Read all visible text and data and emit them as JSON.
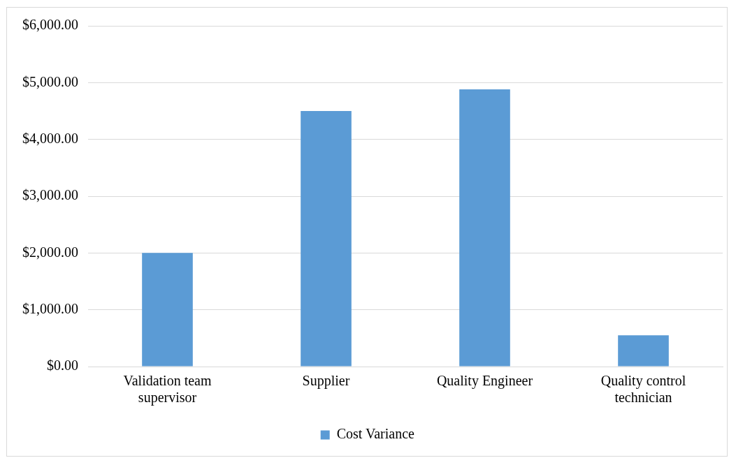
{
  "chart_data": {
    "type": "bar",
    "categories": [
      "Validation team supervisor",
      "Supplier",
      "Quality Engineer",
      "Quality control technician"
    ],
    "series": [
      {
        "name": "Cost Variance",
        "color": "#5b9bd5",
        "values": [
          2000,
          4500,
          4880,
          550
        ]
      }
    ],
    "ylim": [
      0,
      6000
    ],
    "yticks": [
      {
        "value": 0,
        "label": "$0.00"
      },
      {
        "value": 1000,
        "label": "$1,000.00"
      },
      {
        "value": 2000,
        "label": "$2,000.00"
      },
      {
        "value": 3000,
        "label": "$3,000.00"
      },
      {
        "value": 4000,
        "label": "$4,000.00"
      },
      {
        "value": 5000,
        "label": "$5,000.00"
      },
      {
        "value": 6000,
        "label": "$6,000.00"
      }
    ],
    "grid": "y",
    "legend": "bottom"
  }
}
